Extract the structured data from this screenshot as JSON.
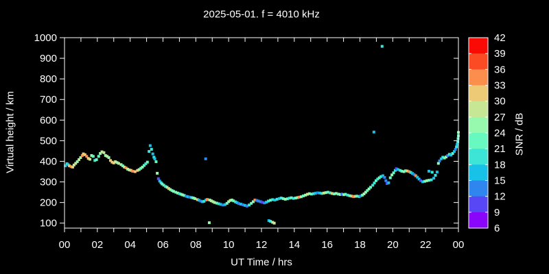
{
  "title": "2025-05-01. f = 4010 kHz",
  "colors": {
    "background": "#000000",
    "foreground": "#ffffff"
  },
  "chart_data": {
    "type": "scatter",
    "title": "2025-05-01. f = 4010 kHz",
    "xlabel": "UT Time / hrs",
    "ylabel": "Virtual height / km",
    "colorbar_label": "SNR / dB",
    "xlim_hours": [
      0,
      24
    ],
    "ylim_km": [
      76,
      1000
    ],
    "grid": false,
    "x_tick_hours": [
      0,
      2,
      4,
      6,
      8,
      10,
      12,
      14,
      16,
      18,
      20,
      22,
      24
    ],
    "x_tick_labels": [
      "00",
      "02",
      "04",
      "06",
      "08",
      "10",
      "12",
      "14",
      "16",
      "18",
      "20",
      "22",
      "00"
    ],
    "x_minor_tick_every_hours": 1,
    "y_tick_values": [
      100,
      200,
      300,
      400,
      500,
      600,
      700,
      800,
      900,
      1000
    ],
    "colorbar_tick_values": [
      6,
      9,
      12,
      15,
      18,
      21,
      24,
      27,
      30,
      33,
      36,
      39,
      42
    ],
    "snr_bin_colors_low_to_high": [
      "#8a06fa",
      "#5747f5",
      "#2e86ee",
      "#17c1e8",
      "#3ce5d6",
      "#68f9c1",
      "#97f9ad",
      "#c7e795",
      "#edcb76",
      "#fb8e4d",
      "#fb4b25",
      "#fa0a05"
    ],
    "points_hr_km_snr": [
      [
        0.05,
        378,
        16
      ],
      [
        0.15,
        388,
        19
      ],
      [
        0.22,
        384,
        16
      ],
      [
        0.3,
        378,
        31
      ],
      [
        0.4,
        374,
        34
      ],
      [
        0.5,
        372,
        31
      ],
      [
        0.58,
        382,
        28
      ],
      [
        0.68,
        390,
        28
      ],
      [
        0.78,
        398,
        25
      ],
      [
        0.88,
        408,
        28
      ],
      [
        0.98,
        418,
        25
      ],
      [
        1.08,
        428,
        34
      ],
      [
        1.15,
        436,
        31
      ],
      [
        1.25,
        432,
        31
      ],
      [
        1.35,
        424,
        34
      ],
      [
        1.45,
        414,
        31
      ],
      [
        1.55,
        410,
        28
      ],
      [
        1.65,
        428,
        25
      ],
      [
        1.75,
        424,
        22
      ],
      [
        1.85,
        404,
        19
      ],
      [
        1.95,
        408,
        22
      ],
      [
        2.08,
        424,
        22
      ],
      [
        2.18,
        438,
        25
      ],
      [
        2.28,
        446,
        28
      ],
      [
        2.4,
        442,
        28
      ],
      [
        2.5,
        428,
        25
      ],
      [
        2.6,
        424,
        28
      ],
      [
        2.7,
        418,
        25
      ],
      [
        2.8,
        404,
        31
      ],
      [
        2.9,
        396,
        31
      ],
      [
        3.0,
        392,
        31
      ],
      [
        3.1,
        398,
        28
      ],
      [
        3.2,
        394,
        25
      ],
      [
        3.3,
        390,
        28
      ],
      [
        3.45,
        384,
        25
      ],
      [
        3.55,
        378,
        22
      ],
      [
        3.65,
        372,
        28
      ],
      [
        3.75,
        368,
        34
      ],
      [
        3.85,
        362,
        25
      ],
      [
        3.95,
        358,
        28
      ],
      [
        4.05,
        356,
        31
      ],
      [
        4.15,
        352,
        34
      ],
      [
        4.3,
        350,
        31
      ],
      [
        4.45,
        356,
        31
      ],
      [
        4.55,
        360,
        25
      ],
      [
        4.65,
        366,
        22
      ],
      [
        4.75,
        372,
        25
      ],
      [
        4.85,
        380,
        22
      ],
      [
        4.95,
        388,
        19
      ],
      [
        5.05,
        396,
        22
      ],
      [
        5.15,
        448,
        19
      ],
      [
        5.22,
        476,
        16
      ],
      [
        5.3,
        458,
        19
      ],
      [
        5.38,
        436,
        16
      ],
      [
        5.45,
        420,
        19
      ],
      [
        5.5,
        412,
        16
      ],
      [
        5.58,
        398,
        22
      ],
      [
        5.65,
        342,
        25
      ],
      [
        5.72,
        316,
        10
      ],
      [
        5.8,
        304,
        16
      ],
      [
        5.88,
        296,
        19
      ],
      [
        5.95,
        290,
        22
      ],
      [
        6.05,
        284,
        22
      ],
      [
        6.15,
        278,
        19
      ],
      [
        6.25,
        274,
        25
      ],
      [
        6.35,
        268,
        31
      ],
      [
        6.45,
        263,
        25
      ],
      [
        6.55,
        258,
        22
      ],
      [
        6.65,
        254,
        25
      ],
      [
        6.78,
        250,
        22
      ],
      [
        6.9,
        246,
        25
      ],
      [
        7.0,
        243,
        19
      ],
      [
        7.1,
        240,
        22
      ],
      [
        7.2,
        237,
        25
      ],
      [
        7.3,
        234,
        22
      ],
      [
        7.42,
        230,
        13
      ],
      [
        7.52,
        228,
        16
      ],
      [
        7.62,
        226,
        13
      ],
      [
        7.75,
        224,
        19
      ],
      [
        7.85,
        222,
        22
      ],
      [
        7.95,
        219,
        25
      ],
      [
        8.1,
        214,
        31
      ],
      [
        8.2,
        211,
        16
      ],
      [
        8.3,
        207,
        13
      ],
      [
        8.4,
        204,
        16
      ],
      [
        8.5,
        206,
        19
      ],
      [
        8.6,
        412,
        13
      ],
      [
        8.62,
        212,
        16
      ],
      [
        8.7,
        215,
        34
      ],
      [
        8.82,
        102,
        25
      ],
      [
        8.85,
        212,
        25
      ],
      [
        8.95,
        208,
        28
      ],
      [
        9.05,
        204,
        25
      ],
      [
        9.15,
        200,
        28
      ],
      [
        9.28,
        197,
        22
      ],
      [
        9.4,
        194,
        19
      ],
      [
        9.52,
        191,
        16
      ],
      [
        9.65,
        188,
        13
      ],
      [
        9.78,
        190,
        16
      ],
      [
        9.9,
        196,
        22
      ],
      [
        10.0,
        204,
        25
      ],
      [
        10.1,
        210,
        28
      ],
      [
        10.2,
        212,
        25
      ],
      [
        10.3,
        208,
        22
      ],
      [
        10.42,
        203,
        19
      ],
      [
        10.52,
        199,
        16
      ],
      [
        10.62,
        195,
        13
      ],
      [
        10.75,
        192,
        16
      ],
      [
        10.88,
        189,
        13
      ],
      [
        11.0,
        186,
        16
      ],
      [
        11.12,
        183,
        13
      ],
      [
        11.25,
        188,
        19
      ],
      [
        11.38,
        196,
        22
      ],
      [
        11.5,
        204,
        25
      ],
      [
        11.6,
        212,
        34
      ],
      [
        11.72,
        210,
        13
      ],
      [
        11.82,
        207,
        13
      ],
      [
        11.95,
        204,
        13
      ],
      [
        12.05,
        201,
        10
      ],
      [
        12.18,
        198,
        13
      ],
      [
        12.3,
        202,
        16
      ],
      [
        12.42,
        207,
        19
      ],
      [
        12.45,
        112,
        16
      ],
      [
        12.55,
        109,
        19
      ],
      [
        12.68,
        104,
        28
      ],
      [
        12.78,
        100,
        28
      ],
      [
        12.55,
        211,
        22
      ],
      [
        12.68,
        214,
        19
      ],
      [
        12.82,
        212,
        16
      ],
      [
        12.95,
        216,
        19
      ],
      [
        13.08,
        219,
        16
      ],
      [
        13.2,
        222,
        19
      ],
      [
        13.32,
        219,
        22
      ],
      [
        13.45,
        216,
        25
      ],
      [
        13.58,
        218,
        22
      ],
      [
        13.7,
        221,
        19
      ],
      [
        13.82,
        223,
        22
      ],
      [
        13.95,
        220,
        19
      ],
      [
        14.08,
        222,
        22
      ],
      [
        14.2,
        224,
        25
      ],
      [
        14.3,
        226,
        34
      ],
      [
        14.42,
        228,
        25
      ],
      [
        14.55,
        232,
        22
      ],
      [
        14.68,
        236,
        25
      ],
      [
        14.8,
        240,
        28
      ],
      [
        14.92,
        243,
        25
      ],
      [
        15.05,
        241,
        22
      ],
      [
        15.18,
        243,
        19
      ],
      [
        15.3,
        245,
        16
      ],
      [
        15.42,
        247,
        13
      ],
      [
        15.55,
        246,
        16
      ],
      [
        15.68,
        244,
        19
      ],
      [
        15.8,
        246,
        28
      ],
      [
        15.92,
        248,
        25
      ],
      [
        16.05,
        250,
        22
      ],
      [
        16.18,
        247,
        19
      ],
      [
        16.3,
        244,
        31
      ],
      [
        16.42,
        242,
        22
      ],
      [
        16.55,
        244,
        25
      ],
      [
        16.68,
        241,
        22
      ],
      [
        16.8,
        239,
        25
      ],
      [
        16.9,
        241,
        13
      ],
      [
        17.02,
        238,
        25
      ],
      [
        17.12,
        240,
        22
      ],
      [
        17.25,
        236,
        19
      ],
      [
        17.38,
        233,
        22
      ],
      [
        17.5,
        231,
        31
      ],
      [
        17.6,
        229,
        34
      ],
      [
        17.72,
        230,
        31
      ],
      [
        17.82,
        231,
        22
      ],
      [
        17.95,
        229,
        19
      ],
      [
        18.05,
        232,
        13
      ],
      [
        18.15,
        236,
        22
      ],
      [
        18.25,
        242,
        25
      ],
      [
        18.35,
        250,
        25
      ],
      [
        18.45,
        258,
        22
      ],
      [
        18.55,
        266,
        25
      ],
      [
        18.65,
        274,
        22
      ],
      [
        18.78,
        284,
        19
      ],
      [
        18.85,
        542,
        17
      ],
      [
        18.88,
        295,
        19
      ],
      [
        18.98,
        306,
        22
      ],
      [
        19.08,
        314,
        19
      ],
      [
        19.18,
        320,
        22
      ],
      [
        19.28,
        326,
        19
      ],
      [
        19.35,
        958,
        20
      ],
      [
        19.4,
        330,
        16
      ],
      [
        19.5,
        322,
        13
      ],
      [
        19.58,
        306,
        13
      ],
      [
        19.65,
        292,
        10
      ],
      [
        19.75,
        296,
        16
      ],
      [
        19.85,
        320,
        22
      ],
      [
        19.95,
        334,
        25
      ],
      [
        20.05,
        344,
        22
      ],
      [
        20.15,
        356,
        19
      ],
      [
        20.22,
        364,
        10
      ],
      [
        20.32,
        360,
        16
      ],
      [
        20.45,
        356,
        19
      ],
      [
        20.55,
        352,
        22
      ],
      [
        20.68,
        350,
        25
      ],
      [
        20.78,
        354,
        22
      ],
      [
        20.88,
        353,
        31
      ],
      [
        21.0,
        350,
        34
      ],
      [
        21.1,
        346,
        19
      ],
      [
        21.2,
        341,
        16
      ],
      [
        21.3,
        336,
        13
      ],
      [
        21.4,
        330,
        34
      ],
      [
        21.5,
        323,
        16
      ],
      [
        21.6,
        314,
        16
      ],
      [
        21.7,
        306,
        10
      ],
      [
        21.82,
        301,
        16
      ],
      [
        21.95,
        303,
        22
      ],
      [
        22.08,
        306,
        25
      ],
      [
        22.2,
        308,
        22
      ],
      [
        22.2,
        352,
        16
      ],
      [
        22.35,
        310,
        19
      ],
      [
        22.4,
        347,
        19
      ],
      [
        22.5,
        318,
        16
      ],
      [
        22.6,
        332,
        19
      ],
      [
        22.7,
        348,
        16
      ],
      [
        22.78,
        390,
        25
      ],
      [
        22.85,
        402,
        13
      ],
      [
        22.95,
        412,
        16
      ],
      [
        23.05,
        420,
        19
      ],
      [
        23.15,
        416,
        22
      ],
      [
        23.25,
        421,
        25
      ],
      [
        23.35,
        428,
        13
      ],
      [
        23.45,
        434,
        19
      ],
      [
        23.55,
        430,
        16
      ],
      [
        23.65,
        438,
        22
      ],
      [
        23.75,
        448,
        16
      ],
      [
        23.82,
        458,
        13
      ],
      [
        23.88,
        470,
        19
      ],
      [
        23.92,
        482,
        16
      ],
      [
        23.96,
        495,
        19
      ],
      [
        23.98,
        510,
        22
      ],
      [
        24.0,
        524,
        22
      ],
      [
        24.0,
        540,
        25
      ]
    ]
  }
}
